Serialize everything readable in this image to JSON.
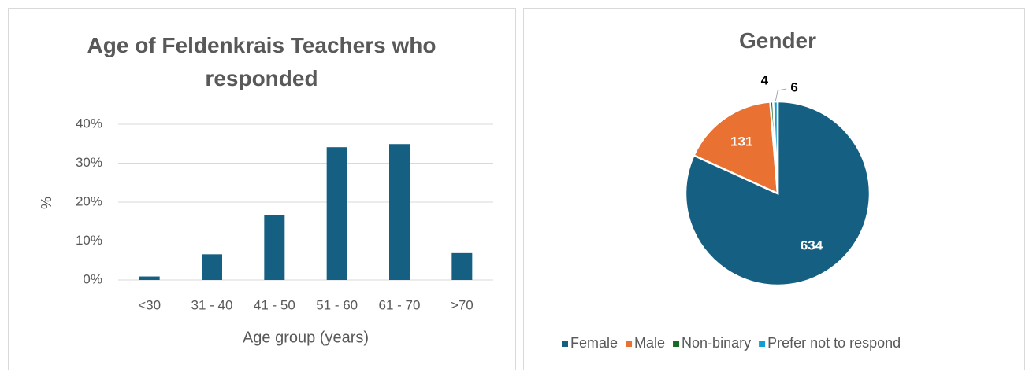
{
  "chart_data": [
    {
      "type": "bar",
      "title": "Age of Feldenkrais Teachers who responded",
      "x_label": "Age group (years)",
      "y_label": "%",
      "categories": [
        "<30",
        "31 - 40",
        "41 - 50",
        "51 - 60",
        "61 - 70",
        ">70"
      ],
      "values": [
        0.9,
        6.6,
        16.6,
        34.1,
        34.9,
        6.9
      ],
      "color": "#156082",
      "ylim": [
        0,
        40
      ],
      "yticks": [
        {
          "value": 0,
          "label": "0%"
        },
        {
          "value": 10,
          "label": "10%"
        },
        {
          "value": 20,
          "label": "20%"
        },
        {
          "value": 30,
          "label": "30%"
        },
        {
          "value": 40,
          "label": "40%"
        }
      ],
      "grid": true
    },
    {
      "type": "pie",
      "title": "Gender",
      "categories": [
        "Female",
        "Male",
        "Non-binary",
        "Prefer not to respond"
      ],
      "values": [
        634,
        131,
        4,
        6
      ],
      "colors": [
        "#156082",
        "#e97132",
        "#196b24",
        "#0f9ed5"
      ],
      "legend": "bottom"
    }
  ]
}
